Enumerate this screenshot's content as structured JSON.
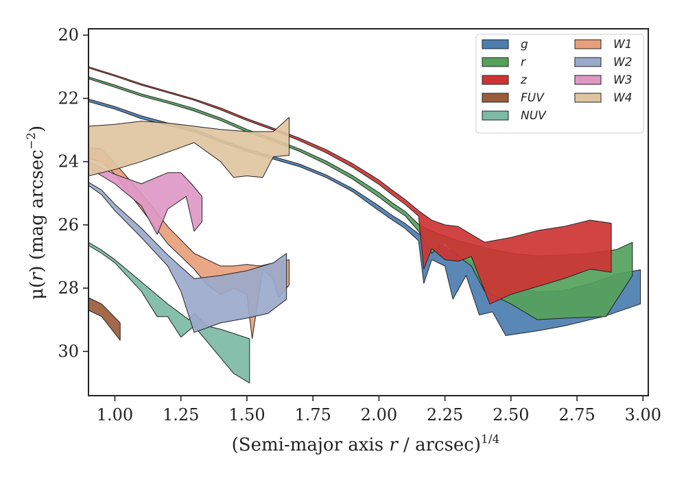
{
  "chart_data": {
    "type": "area",
    "xlabel": "(Semi-major axis r / arcsec)^1/4",
    "xlabel_parts": {
      "main": "(Semi-major axis ",
      "var": "r",
      "rest": " / arcsec)",
      "sup": "1/4"
    },
    "ylabel_parts": {
      "mu": "μ(",
      "var": "r",
      "mid": ") (mag arcsec",
      "sup": "−2",
      "end": ")"
    },
    "xlim": [
      0.9,
      3.02
    ],
    "ylim": [
      31.4,
      19.8
    ],
    "y_inverted": true,
    "xticks": [
      1.0,
      1.25,
      1.5,
      1.75,
      2.0,
      2.25,
      2.5,
      2.75,
      3.0
    ],
    "xtick_labels": [
      "1.00",
      "1.25",
      "1.50",
      "1.75",
      "2.00",
      "2.25",
      "2.50",
      "2.75",
      "3.00"
    ],
    "yticks": [
      20,
      22,
      24,
      26,
      28,
      30
    ],
    "ytick_labels": [
      "20",
      "22",
      "24",
      "26",
      "28",
      "30"
    ],
    "grid": false,
    "legend_position": "top-right",
    "legend_columns": 2,
    "series": [
      {
        "name": "g",
        "color": "#4c7eb0",
        "upper": [
          [
            0.9,
            22.02
          ],
          [
            1.0,
            22.26
          ],
          [
            1.1,
            22.55
          ],
          [
            1.2,
            22.78
          ],
          [
            1.3,
            22.98
          ],
          [
            1.4,
            23.3
          ],
          [
            1.5,
            23.6
          ],
          [
            1.6,
            23.84
          ],
          [
            1.7,
            24.08
          ],
          [
            1.8,
            24.42
          ],
          [
            1.9,
            24.85
          ],
          [
            2.0,
            25.4
          ],
          [
            2.05,
            25.7
          ],
          [
            2.1,
            25.96
          ],
          [
            2.15,
            26.28
          ],
          [
            2.2,
            26.5
          ],
          [
            2.25,
            26.7
          ],
          [
            2.3,
            26.95
          ],
          [
            2.35,
            27.2
          ],
          [
            2.4,
            27.6
          ],
          [
            2.5,
            27.9
          ],
          [
            2.6,
            28.12
          ],
          [
            2.7,
            28.08
          ],
          [
            2.8,
            27.86
          ],
          [
            2.9,
            27.56
          ],
          [
            2.99,
            27.42
          ]
        ],
        "lower": [
          [
            0.9,
            22.1
          ],
          [
            1.0,
            22.34
          ],
          [
            1.1,
            22.64
          ],
          [
            1.2,
            22.86
          ],
          [
            1.3,
            23.06
          ],
          [
            1.4,
            23.38
          ],
          [
            1.5,
            23.68
          ],
          [
            1.6,
            23.92
          ],
          [
            1.7,
            24.16
          ],
          [
            1.8,
            24.5
          ],
          [
            1.9,
            24.95
          ],
          [
            2.0,
            25.55
          ],
          [
            2.05,
            25.84
          ],
          [
            2.1,
            26.12
          ],
          [
            2.15,
            26.5
          ],
          [
            2.17,
            27.85
          ],
          [
            2.2,
            27.1
          ],
          [
            2.25,
            27.3
          ],
          [
            2.28,
            28.35
          ],
          [
            2.33,
            27.6
          ],
          [
            2.38,
            28.85
          ],
          [
            2.43,
            28.75
          ],
          [
            2.48,
            29.5
          ],
          [
            2.6,
            29.35
          ],
          [
            2.7,
            29.2
          ],
          [
            2.85,
            28.9
          ],
          [
            2.99,
            28.5
          ]
        ]
      },
      {
        "name": "r",
        "color": "#55a15c",
        "upper": [
          [
            0.9,
            21.32
          ],
          [
            1.0,
            21.58
          ],
          [
            1.1,
            21.86
          ],
          [
            1.2,
            22.08
          ],
          [
            1.3,
            22.32
          ],
          [
            1.4,
            22.62
          ],
          [
            1.5,
            22.98
          ],
          [
            1.6,
            23.28
          ],
          [
            1.7,
            23.6
          ],
          [
            1.8,
            23.98
          ],
          [
            1.9,
            24.44
          ],
          [
            2.0,
            24.98
          ],
          [
            2.05,
            25.3
          ],
          [
            2.1,
            25.58
          ],
          [
            2.15,
            25.98
          ],
          [
            2.2,
            26.2
          ],
          [
            2.3,
            26.5
          ],
          [
            2.4,
            26.72
          ],
          [
            2.5,
            26.9
          ],
          [
            2.6,
            26.98
          ],
          [
            2.7,
            26.95
          ],
          [
            2.8,
            26.9
          ],
          [
            2.9,
            26.78
          ],
          [
            2.96,
            26.55
          ]
        ],
        "lower": [
          [
            0.9,
            21.38
          ],
          [
            1.0,
            21.65
          ],
          [
            1.1,
            21.93
          ],
          [
            1.2,
            22.15
          ],
          [
            1.3,
            22.4
          ],
          [
            1.4,
            22.7
          ],
          [
            1.5,
            23.06
          ],
          [
            1.6,
            23.36
          ],
          [
            1.7,
            23.68
          ],
          [
            1.8,
            24.08
          ],
          [
            1.9,
            24.55
          ],
          [
            2.0,
            25.12
          ],
          [
            2.05,
            25.44
          ],
          [
            2.1,
            25.72
          ],
          [
            2.15,
            26.2
          ],
          [
            2.2,
            26.9
          ],
          [
            2.25,
            26.55
          ],
          [
            2.3,
            27.0
          ],
          [
            2.35,
            27.3
          ],
          [
            2.4,
            28.1
          ],
          [
            2.5,
            28.5
          ],
          [
            2.6,
            29.0
          ],
          [
            2.7,
            28.95
          ],
          [
            2.86,
            28.9
          ],
          [
            2.96,
            27.6
          ]
        ]
      },
      {
        "name": "z",
        "color": "#cc3533",
        "upper": [
          [
            0.9,
            21.0
          ],
          [
            1.0,
            21.26
          ],
          [
            1.1,
            21.54
          ],
          [
            1.2,
            21.78
          ],
          [
            1.3,
            22.02
          ],
          [
            1.4,
            22.3
          ],
          [
            1.5,
            22.64
          ],
          [
            1.6,
            22.94
          ],
          [
            1.7,
            23.26
          ],
          [
            1.8,
            23.62
          ],
          [
            1.9,
            24.06
          ],
          [
            2.0,
            24.58
          ],
          [
            2.05,
            24.9
          ],
          [
            2.1,
            25.2
          ],
          [
            2.15,
            25.55
          ],
          [
            2.2,
            25.85
          ],
          [
            2.25,
            26.0
          ],
          [
            2.3,
            26.05
          ],
          [
            2.35,
            26.3
          ],
          [
            2.4,
            26.55
          ],
          [
            2.5,
            26.4
          ],
          [
            2.6,
            26.18
          ],
          [
            2.7,
            26.05
          ],
          [
            2.8,
            25.85
          ],
          [
            2.88,
            25.95
          ]
        ],
        "lower": [
          [
            0.9,
            21.04
          ],
          [
            1.0,
            21.3
          ],
          [
            1.1,
            21.58
          ],
          [
            1.2,
            21.82
          ],
          [
            1.3,
            22.06
          ],
          [
            1.4,
            22.36
          ],
          [
            1.5,
            22.7
          ],
          [
            1.6,
            23.0
          ],
          [
            1.7,
            23.34
          ],
          [
            1.8,
            23.72
          ],
          [
            1.9,
            24.18
          ],
          [
            2.0,
            24.72
          ],
          [
            2.05,
            25.05
          ],
          [
            2.1,
            25.36
          ],
          [
            2.15,
            25.72
          ],
          [
            2.17,
            27.4
          ],
          [
            2.2,
            26.75
          ],
          [
            2.25,
            27.1
          ],
          [
            2.3,
            27.15
          ],
          [
            2.35,
            27.0
          ],
          [
            2.42,
            28.5
          ],
          [
            2.5,
            28.2
          ],
          [
            2.6,
            27.95
          ],
          [
            2.7,
            27.7
          ],
          [
            2.8,
            27.4
          ],
          [
            2.88,
            27.5
          ]
        ]
      },
      {
        "name": "FUV",
        "color": "#9a5d3c",
        "upper": [
          [
            0.9,
            28.3
          ],
          [
            0.95,
            28.5
          ],
          [
            1.02,
            29.1
          ]
        ],
        "lower": [
          [
            0.9,
            28.7
          ],
          [
            0.95,
            28.9
          ],
          [
            1.02,
            29.65
          ]
        ]
      },
      {
        "name": "NUV",
        "color": "#7cbaa4",
        "upper": [
          [
            0.9,
            26.55
          ],
          [
            0.95,
            26.8
          ],
          [
            1.0,
            27.1
          ],
          [
            1.1,
            27.8
          ],
          [
            1.2,
            28.5
          ],
          [
            1.28,
            29.0
          ],
          [
            1.3,
            28.8
          ],
          [
            1.35,
            29.2
          ],
          [
            1.4,
            29.3
          ],
          [
            1.51,
            29.6
          ]
        ],
        "lower": [
          [
            0.9,
            26.65
          ],
          [
            0.95,
            26.9
          ],
          [
            1.0,
            27.2
          ],
          [
            1.1,
            28.1
          ],
          [
            1.16,
            28.9
          ],
          [
            1.2,
            28.9
          ],
          [
            1.25,
            29.55
          ],
          [
            1.3,
            29.2
          ],
          [
            1.35,
            29.7
          ],
          [
            1.45,
            30.7
          ],
          [
            1.51,
            31.0
          ]
        ]
      },
      {
        "name": "W1",
        "color": "#e79f7c",
        "upper": [
          [
            0.9,
            23.55
          ],
          [
            0.95,
            23.6
          ],
          [
            1.0,
            24.05
          ],
          [
            1.1,
            25.0
          ],
          [
            1.2,
            26.05
          ],
          [
            1.3,
            26.9
          ],
          [
            1.4,
            27.3
          ],
          [
            1.45,
            27.3
          ],
          [
            1.5,
            27.25
          ],
          [
            1.55,
            27.3
          ],
          [
            1.6,
            27.2
          ],
          [
            1.66,
            27.1
          ]
        ],
        "lower": [
          [
            0.9,
            23.9
          ],
          [
            0.95,
            24.0
          ],
          [
            1.0,
            24.4
          ],
          [
            1.1,
            25.5
          ],
          [
            1.2,
            26.6
          ],
          [
            1.3,
            27.4
          ],
          [
            1.35,
            27.9
          ],
          [
            1.4,
            28.2
          ],
          [
            1.45,
            28.0
          ],
          [
            1.5,
            28.2
          ],
          [
            1.52,
            29.6
          ],
          [
            1.56,
            27.4
          ],
          [
            1.6,
            27.7
          ],
          [
            1.62,
            28.3
          ],
          [
            1.66,
            27.9
          ]
        ]
      },
      {
        "name": "W2",
        "color": "#9ba9cb",
        "upper": [
          [
            0.9,
            24.65
          ],
          [
            0.95,
            24.9
          ],
          [
            1.0,
            25.35
          ],
          [
            1.1,
            26.1
          ],
          [
            1.2,
            26.95
          ],
          [
            1.3,
            27.7
          ],
          [
            1.4,
            27.6
          ],
          [
            1.5,
            27.45
          ],
          [
            1.6,
            27.2
          ],
          [
            1.65,
            26.9
          ]
        ],
        "lower": [
          [
            0.9,
            24.75
          ],
          [
            0.95,
            25.05
          ],
          [
            1.0,
            25.55
          ],
          [
            1.1,
            26.4
          ],
          [
            1.2,
            27.3
          ],
          [
            1.25,
            28.1
          ],
          [
            1.3,
            29.4
          ],
          [
            1.4,
            29.1
          ],
          [
            1.5,
            28.95
          ],
          [
            1.58,
            28.8
          ],
          [
            1.65,
            28.35
          ]
        ]
      },
      {
        "name": "W3",
        "color": "#de98c6",
        "upper": [
          [
            0.9,
            24.0
          ],
          [
            1.0,
            24.4
          ],
          [
            1.1,
            24.7
          ],
          [
            1.2,
            24.35
          ],
          [
            1.25,
            24.35
          ],
          [
            1.29,
            24.7
          ],
          [
            1.33,
            25.1
          ]
        ],
        "lower": [
          [
            0.9,
            24.2
          ],
          [
            1.0,
            24.7
          ],
          [
            1.1,
            25.4
          ],
          [
            1.16,
            26.3
          ],
          [
            1.2,
            25.5
          ],
          [
            1.27,
            25.1
          ],
          [
            1.3,
            26.2
          ],
          [
            1.33,
            25.9
          ]
        ]
      },
      {
        "name": "W4",
        "color": "#dfc49f",
        "upper": [
          [
            0.9,
            22.88
          ],
          [
            1.0,
            22.82
          ],
          [
            1.1,
            22.72
          ],
          [
            1.2,
            22.78
          ],
          [
            1.3,
            22.88
          ],
          [
            1.4,
            22.98
          ],
          [
            1.5,
            23.05
          ],
          [
            1.6,
            23.05
          ],
          [
            1.66,
            22.6
          ]
        ],
        "lower": [
          [
            0.9,
            24.45
          ],
          [
            1.0,
            24.25
          ],
          [
            1.1,
            24.0
          ],
          [
            1.2,
            23.7
          ],
          [
            1.3,
            23.4
          ],
          [
            1.4,
            24.0
          ],
          [
            1.45,
            24.5
          ],
          [
            1.5,
            24.45
          ],
          [
            1.56,
            24.5
          ],
          [
            1.6,
            23.85
          ],
          [
            1.66,
            23.8
          ]
        ]
      }
    ]
  }
}
